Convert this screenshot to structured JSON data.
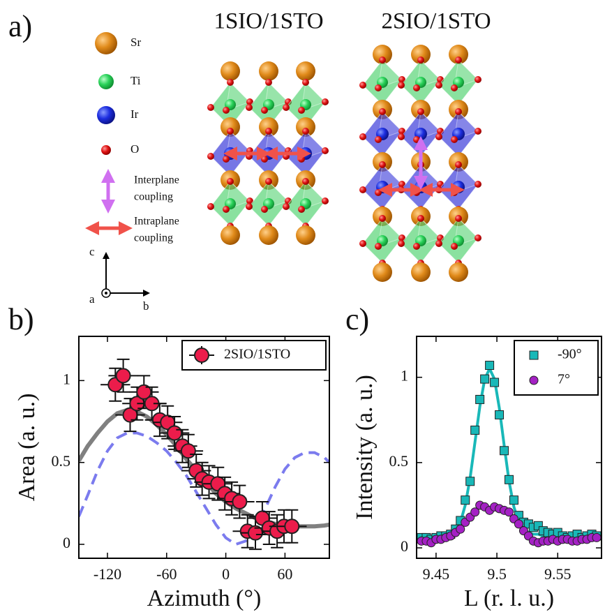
{
  "panels": {
    "a": "a)",
    "b": "b)",
    "c": "c)"
  },
  "structure": {
    "titles": [
      "1SIO/1STO",
      "2SIO/1STO"
    ],
    "title_colors": [
      "#3a35e6",
      "#ee3b3b"
    ],
    "atoms": [
      "Sr",
      "Ti",
      "Ir",
      "O"
    ],
    "interplane": [
      "Interplane",
      "coupling"
    ],
    "intraplane": [
      "Intraplane",
      "coupling"
    ],
    "axes": [
      "c",
      "a",
      "b"
    ]
  },
  "chart_data": [
    {
      "type": "scatter",
      "xlabel": "Azimuth (°)",
      "ylabel": "Area (a. u.)",
      "xlim": [
        -149,
        105
      ],
      "ylim": [
        -0.085,
        1.27
      ],
      "xticks": [
        -120,
        -60,
        0,
        60
      ],
      "yticks": [
        0,
        0.5,
        1
      ],
      "legend": "upper right",
      "yerr": 0.1,
      "xerr": 15,
      "series": [
        {
          "mode": "line",
          "style": "solid",
          "color": "#808080",
          "x": [
            -149,
            -140,
            -130,
            -120,
            -110,
            -100,
            -90,
            -80,
            -70,
            -60,
            -50,
            -40,
            -30,
            -20,
            -10,
            0,
            10,
            20,
            30,
            40,
            50,
            60,
            70,
            80,
            90,
            100,
            105
          ],
          "values": [
            0.51,
            0.6,
            0.68,
            0.75,
            0.8,
            0.82,
            0.81,
            0.78,
            0.73,
            0.67,
            0.6,
            0.52,
            0.45,
            0.38,
            0.31,
            0.26,
            0.22,
            0.19,
            0.16,
            0.14,
            0.125,
            0.115,
            0.11,
            0.11,
            0.11,
            0.115,
            0.12
          ]
        },
        {
          "mode": "line",
          "style": "dashed",
          "color": "#7b7bee",
          "x": [
            -149,
            -140,
            -130,
            -120,
            -110,
            -100,
            -90,
            -80,
            -70,
            -60,
            -50,
            -40,
            -30,
            -20,
            -10,
            0,
            10,
            20,
            30,
            40,
            50,
            60,
            70,
            80,
            90,
            100,
            105
          ],
          "values": [
            0.17,
            0.3,
            0.45,
            0.57,
            0.65,
            0.68,
            0.68,
            0.66,
            0.62,
            0.57,
            0.5,
            0.42,
            0.32,
            0.22,
            0.12,
            0.04,
            0.0,
            0.02,
            0.1,
            0.22,
            0.35,
            0.46,
            0.53,
            0.56,
            0.56,
            0.53,
            0.5
          ]
        },
        {
          "name": "2SIO/1STO",
          "mode": "points",
          "marker": "circle",
          "errorbars": true,
          "color": "#ec1c4b",
          "x": [
            -112,
            -104,
            -97,
            -90,
            -83,
            -75,
            -67,
            -59,
            -52,
            -44,
            -38,
            -30,
            -24,
            -17,
            -8,
            -1,
            6,
            14,
            22,
            30,
            37,
            44,
            52,
            59,
            67
          ],
          "values": [
            0.975,
            1.03,
            0.79,
            0.86,
            0.93,
            0.86,
            0.76,
            0.745,
            0.68,
            0.6,
            0.57,
            0.45,
            0.4,
            0.38,
            0.37,
            0.31,
            0.28,
            0.26,
            0.08,
            0.07,
            0.16,
            0.1,
            0.08,
            0.11,
            0.11
          ]
        }
      ]
    },
    {
      "type": "scatter",
      "xlabel": "L (r. l. u.)",
      "ylabel": "Intensity (a. u.)",
      "xlim": [
        9.434,
        9.586
      ],
      "ylim": [
        -0.061,
        1.24
      ],
      "xticks": [
        9.45,
        9.5,
        9.55
      ],
      "yticks": [
        0,
        0.5,
        1
      ],
      "legend": "upper right",
      "series": [
        {
          "mode": "line",
          "style": "solid",
          "color": "#19b8b8",
          "x": [
            9.438,
            9.442,
            9.446,
            9.45,
            9.454,
            9.458,
            9.462,
            9.466,
            9.47,
            9.474,
            9.478,
            9.482,
            9.486,
            9.49,
            9.494,
            9.498,
            9.502,
            9.506,
            9.51,
            9.514,
            9.518,
            9.522,
            9.526,
            9.53,
            9.534,
            9.538,
            9.542,
            9.546,
            9.55,
            9.554,
            9.558,
            9.562,
            9.566,
            9.57,
            9.574,
            9.578,
            9.582
          ],
          "values": [
            0.05,
            0.05,
            0.05,
            0.05,
            0.06,
            0.06,
            0.07,
            0.1,
            0.15,
            0.25,
            0.41,
            0.62,
            0.83,
            0.99,
            1.05,
            0.99,
            0.82,
            0.6,
            0.39,
            0.24,
            0.15,
            0.11,
            0.09,
            0.08,
            0.08,
            0.07,
            0.07,
            0.07,
            0.07,
            0.07,
            0.07,
            0.07,
            0.07,
            0.07,
            0.07,
            0.07,
            0.07
          ]
        },
        {
          "name": "-90°",
          "mode": "points",
          "marker": "square",
          "color": "#19b8b8",
          "x": [
            9.438,
            9.442,
            9.446,
            9.45,
            9.454,
            9.458,
            9.462,
            9.466,
            9.47,
            9.474,
            9.478,
            9.482,
            9.486,
            9.49,
            9.494,
            9.498,
            9.502,
            9.506,
            9.51,
            9.514,
            9.518,
            9.522,
            9.526,
            9.53,
            9.534,
            9.538,
            9.542,
            9.546,
            9.55,
            9.554,
            9.558,
            9.562,
            9.566,
            9.57,
            9.574,
            9.578,
            9.582
          ],
          "values": [
            0.06,
            0.06,
            0.05,
            0.06,
            0.07,
            0.07,
            0.08,
            0.11,
            0.16,
            0.28,
            0.39,
            0.69,
            0.87,
            0.99,
            1.07,
            0.97,
            0.78,
            0.57,
            0.4,
            0.28,
            0.19,
            0.15,
            0.14,
            0.12,
            0.13,
            0.1,
            0.09,
            0.08,
            0.09,
            0.07,
            0.06,
            0.07,
            0.08,
            0.06,
            0.07,
            0.08,
            0.07
          ]
        },
        {
          "name": "7°",
          "mode": "points",
          "marker": "circle",
          "color": "#a421c4",
          "x": [
            9.438,
            9.442,
            9.446,
            9.45,
            9.454,
            9.458,
            9.462,
            9.466,
            9.47,
            9.474,
            9.478,
            9.482,
            9.486,
            9.49,
            9.494,
            9.498,
            9.502,
            9.506,
            9.51,
            9.514,
            9.518,
            9.522,
            9.526,
            9.53,
            9.534,
            9.538,
            9.542,
            9.546,
            9.55,
            9.554,
            9.558,
            9.562,
            9.566,
            9.57,
            9.574,
            9.578,
            9.582
          ],
          "values": [
            0.04,
            0.04,
            0.03,
            0.05,
            0.05,
            0.06,
            0.07,
            0.09,
            0.11,
            0.15,
            0.18,
            0.21,
            0.25,
            0.24,
            0.22,
            0.24,
            0.23,
            0.22,
            0.21,
            0.17,
            0.14,
            0.1,
            0.07,
            0.04,
            0.03,
            0.04,
            0.04,
            0.05,
            0.04,
            0.05,
            0.05,
            0.04,
            0.04,
            0.05,
            0.05,
            0.06,
            0.06
          ]
        }
      ]
    }
  ]
}
